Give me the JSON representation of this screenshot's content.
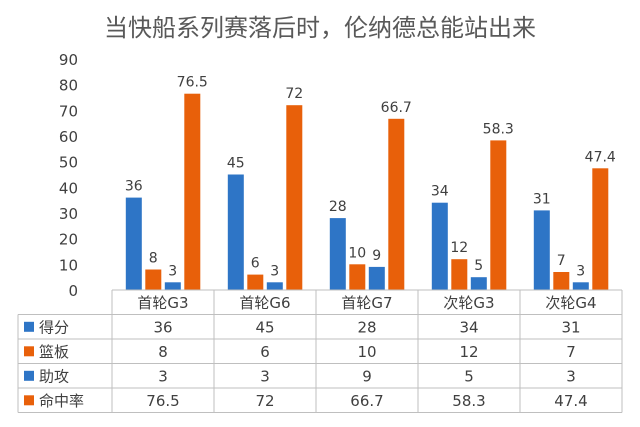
{
  "chart_data": {
    "type": "bar",
    "title": "当快船系列赛落后时，伦纳德总能站出来",
    "categories": [
      "首轮G3",
      "首轮G6",
      "首轮G7",
      "次轮G3",
      "次轮G4"
    ],
    "ylim": [
      0,
      90
    ],
    "yticks": [
      0,
      10,
      20,
      30,
      40,
      50,
      60,
      70,
      80,
      90
    ],
    "grid": false,
    "legend": "table-left",
    "data_table": true,
    "series": [
      {
        "name": "得分",
        "color": "#2E75C6",
        "values": [
          36,
          45,
          28,
          34,
          31
        ],
        "labels": [
          "36",
          "45",
          "28",
          "34",
          "31"
        ]
      },
      {
        "name": "篮板",
        "color": "#E8600A",
        "values": [
          8,
          6,
          10,
          12,
          7
        ],
        "labels": [
          "8",
          "6",
          "10",
          "12",
          "7"
        ]
      },
      {
        "name": "助攻",
        "color": "#2E75C6",
        "values": [
          3,
          3,
          9,
          5,
          3
        ],
        "labels": [
          "3",
          "3",
          "9",
          "5",
          "3"
        ]
      },
      {
        "name": "命中率",
        "color": "#E8600A",
        "values": [
          76.5,
          72,
          66.7,
          58.3,
          47.4
        ],
        "labels": [
          "76.5",
          "72",
          "66.7",
          "58.3",
          "47.4"
        ]
      }
    ]
  }
}
